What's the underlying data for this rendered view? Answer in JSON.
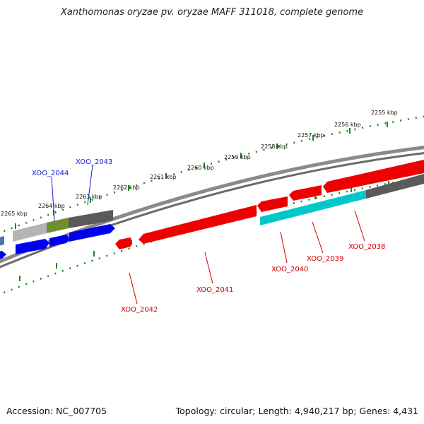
{
  "title": "Xanthomonas oryzae pv. oryzae MAFF 311018, complete genome",
  "footer": {
    "accession": "Accession: NC_007705",
    "topology": "Topology: circular; Length: 4,940,217 bp; Genes: 4,431"
  },
  "ruler": {
    "ticks": [
      "2255 kbp",
      "2256 kbp",
      "2257 kbp",
      "2258 kbp",
      "2259 kbp",
      "2260 kbp",
      "2261 kbp",
      "2262 kbp",
      "2263 kbp",
      "2264 kbp",
      "2265 kbp"
    ]
  },
  "genes": {
    "forward_labeled": [
      "XOO_2043",
      "XOO_2044"
    ],
    "reverse_labeled": [
      "XOO_2038",
      "XOO_2039",
      "XOO_2040",
      "XOO_2041",
      "XOO_2042"
    ]
  },
  "colors": {
    "reverse_gene": "#ee0000",
    "forward_gene": "#0000ee",
    "cyan_track": "#00c8c8",
    "grey_track": "#666666",
    "tick_green": "#1a8a1a",
    "label_red": "#cc0000",
    "label_blue": "#1a1acc"
  }
}
